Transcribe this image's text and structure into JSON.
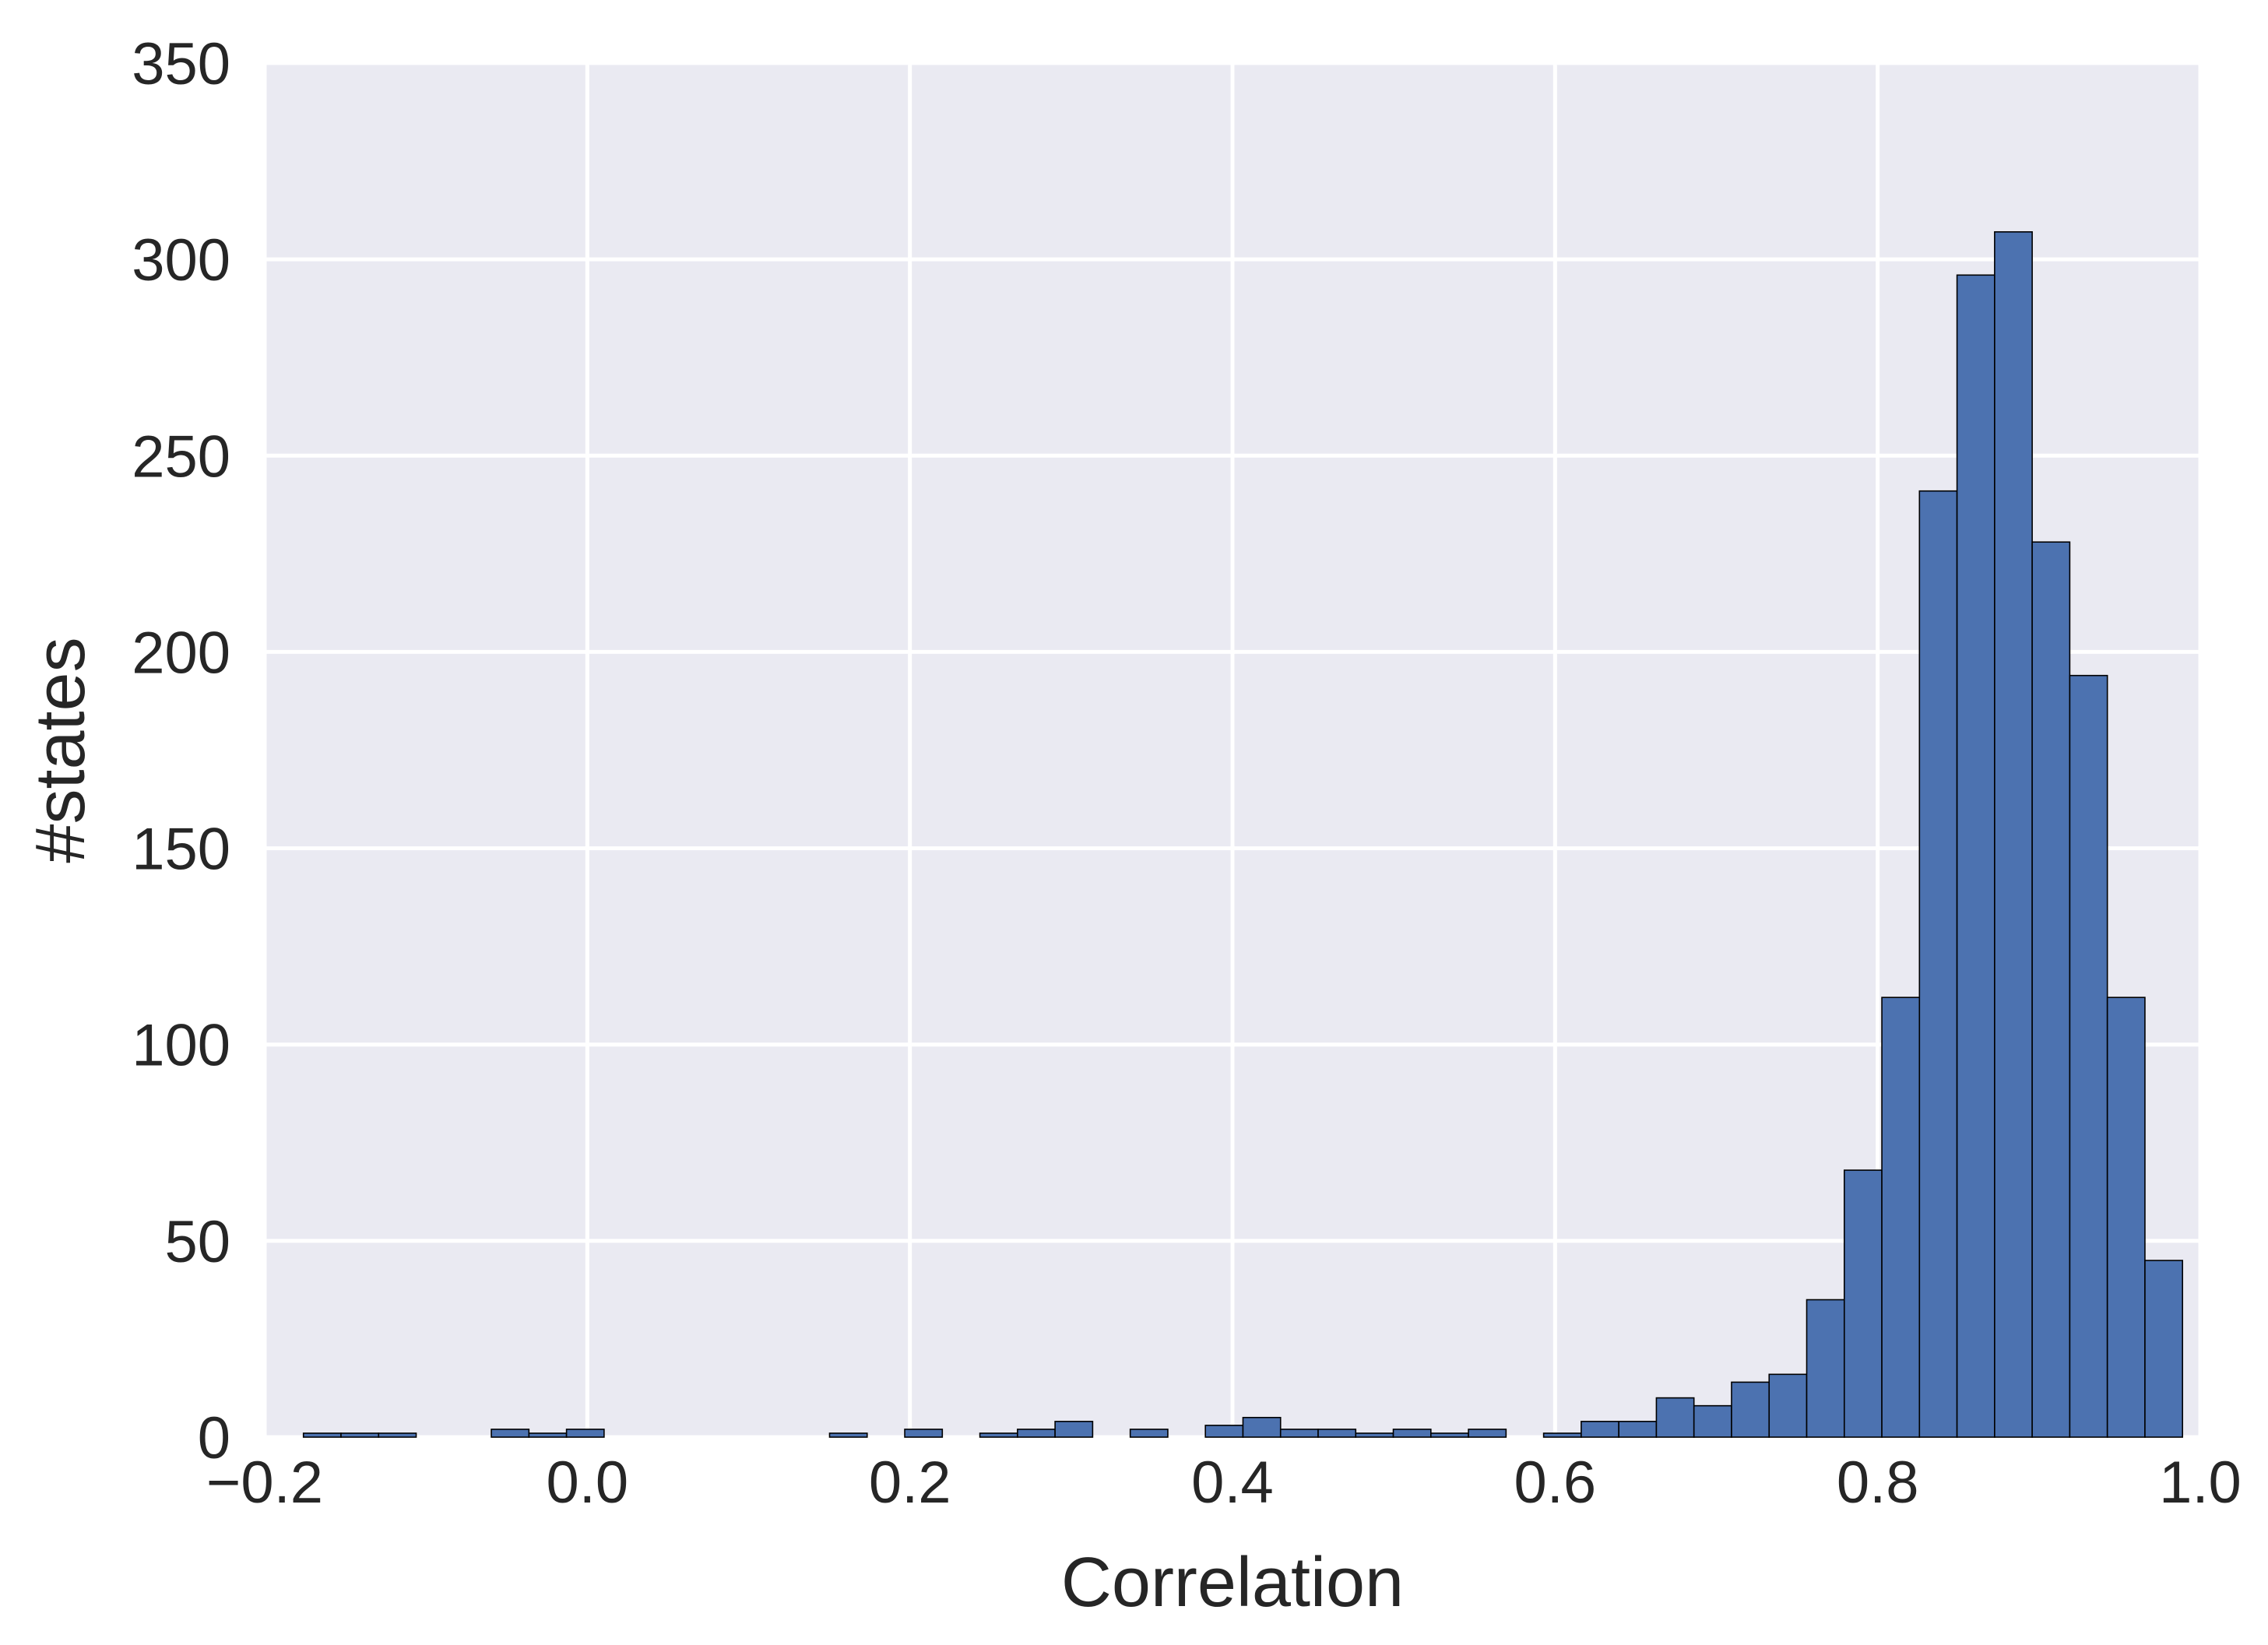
{
  "chart_data": {
    "type": "bar",
    "title": "",
    "xlabel": "Correlation",
    "ylabel": "#states",
    "xlim": [
      -0.2,
      1.0
    ],
    "ylim": [
      0,
      350
    ],
    "xticks": [
      "−0.2",
      "0.0",
      "0.2",
      "0.4",
      "0.6",
      "0.8",
      "1.0"
    ],
    "yticks": [
      "0",
      "50",
      "100",
      "150",
      "200",
      "250",
      "300",
      "350"
    ],
    "grid": true,
    "background": "#eaeaf2",
    "bar_color": "#4c72b0",
    "bin_start": -0.176,
    "bin_width": 0.0233,
    "values": [
      1,
      1,
      1,
      0,
      0,
      2,
      1,
      2,
      0,
      0,
      0,
      0,
      0,
      0,
      1,
      0,
      2,
      0,
      1,
      2,
      4,
      0,
      2,
      0,
      3,
      5,
      2,
      2,
      1,
      2,
      1,
      2,
      0,
      1,
      4,
      4,
      10,
      8,
      14,
      16,
      35,
      68,
      112,
      241,
      296,
      307,
      228,
      194,
      112,
      45
    ]
  }
}
